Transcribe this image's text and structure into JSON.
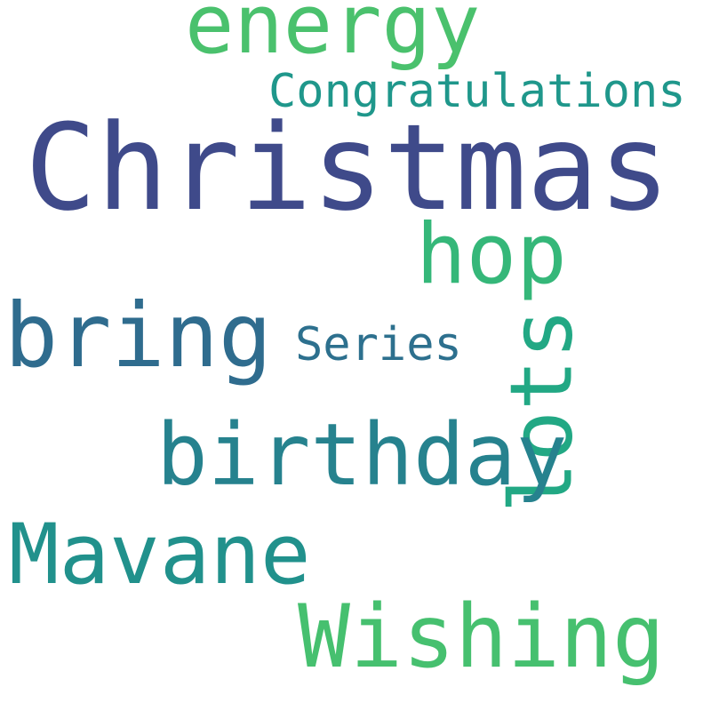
{
  "words": [
    {
      "text": "energy",
      "color": "#4ac16d"
    },
    {
      "text": "Congratulations",
      "color": "#1f978b"
    },
    {
      "text": "Christmas",
      "color": "#3f4a8a"
    },
    {
      "text": "hop",
      "color": "#35b779"
    },
    {
      "text": "bring",
      "color": "#2f6c8e"
    },
    {
      "text": "Series",
      "color": "#2d708e"
    },
    {
      "text": "lots",
      "color": "#22a884"
    },
    {
      "text": "birthday",
      "color": "#26828e"
    },
    {
      "text": "Mavane",
      "color": "#21918c"
    },
    {
      "text": "Wishing",
      "color": "#46c06f"
    }
  ]
}
